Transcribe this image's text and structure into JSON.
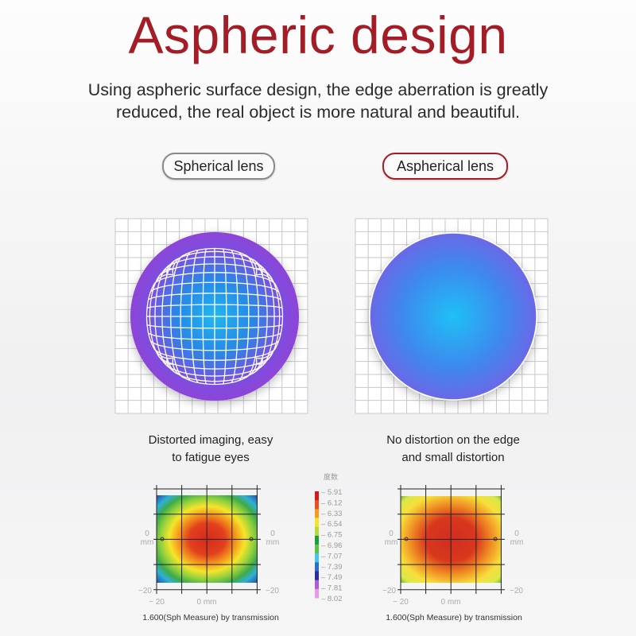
{
  "title": "Aspheric design",
  "subtitle_lines": [
    "Using aspheric surface design, the edge aberration is greatly",
    "reduced, the real object is more natural and beautiful."
  ],
  "left": {
    "label": "Spherical lens",
    "caption": [
      "Distorted imaging, easy",
      "to fatigue eyes"
    ],
    "footer": "1.600(Sph Measure) by transmission"
  },
  "right": {
    "label": "Aspherical lens",
    "caption": [
      "No distortion on the edge",
      "and small distortion"
    ],
    "footer": "1.600(Sph Measure) by transmission"
  },
  "axis": {
    "zero_label": "0",
    "mm": "mm",
    "neg20": "−20",
    "bottom_neg20": "− 20",
    "bottom_zero": "0 mm"
  },
  "legend": {
    "title": "度数",
    "values": [
      "5.91",
      "6.12",
      "6.33",
      "6.54",
      "6.75",
      "6.96",
      "7.07",
      "7.39",
      "7.49",
      "7.81",
      "8.02"
    ],
    "colors": [
      "#d7191c",
      "#e8501c",
      "#f59a1e",
      "#f5e52a",
      "#b6dc3a",
      "#1e9e3a",
      "#5cc24a",
      "#3ec8ee",
      "#2a6fd0",
      "#2a2ea0",
      "#b35ad8",
      "#e89ae8"
    ]
  },
  "colors": {
    "accent": "#a41d26"
  }
}
